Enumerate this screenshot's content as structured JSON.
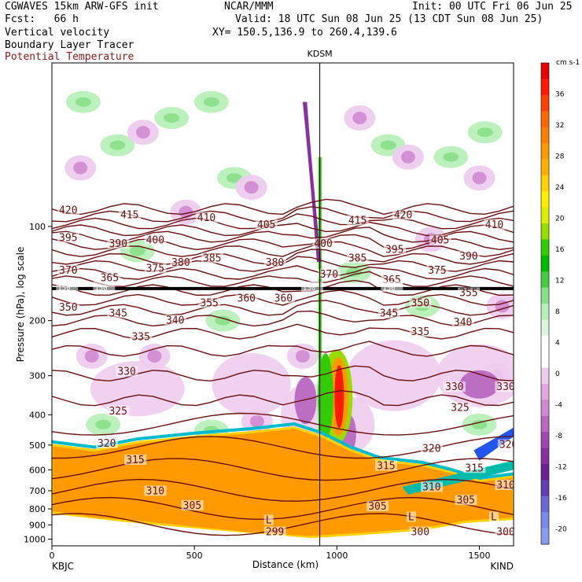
{
  "header": {
    "model": "CGWAVES 15km ARW-GFS init",
    "center": "NCAR/MMM",
    "init": "Init: 00 UTC Fri 06 Jun 25",
    "fcst": "Fcst:   66 h",
    "valid": "Valid: 18 UTC Sun 08 Jun 25 (13 CDT Sun 08 Jun 25)",
    "xy": "XY= 150.5,136.9 to 260.4,139.6",
    "fields": [
      "Vertical velocity",
      "Boundary Layer Tracer",
      "Potential Temperature"
    ]
  },
  "chart_data": {
    "type": "cross-section",
    "station_top": "KDSM",
    "xlabel": "Distance (km)",
    "ylabel": "Pressure (hPa), log scale",
    "x_ticks": [
      "0",
      "500",
      "1000",
      "1500"
    ],
    "x_tick_values": [
      0,
      500,
      1000,
      1500
    ],
    "xlim": [
      0,
      1620
    ],
    "y_ticks": [
      "100",
      "200",
      "300",
      "400",
      "500",
      "600",
      "700",
      "800",
      "900",
      "1000"
    ],
    "y_tick_values": [
      100,
      200,
      300,
      400,
      500,
      600,
      700,
      800,
      900,
      1000
    ],
    "ylim_hpa": [
      1050,
      30
    ],
    "endpoints": {
      "left": "KBJC",
      "right": "KIND"
    },
    "station_marker_x": 940,
    "colorbar": {
      "units": "cm s-1",
      "labels": [
        "36",
        "32",
        "28",
        "24",
        "20",
        "16",
        "12",
        "8",
        "4",
        "0",
        "-4",
        "-8",
        "-12",
        "-16",
        "-20"
      ],
      "colors": [
        "#e60000",
        "#ff1a00",
        "#ff4000",
        "#ff6600",
        "#ff8000",
        "#ff9900",
        "#ffb000",
        "#ffd000",
        "#ffee00",
        "#ddee00",
        "#99dd00",
        "#33cc00",
        "#00bb00",
        "#44cc44",
        "#88e088",
        "#b8efb8",
        "#dbf7db",
        "#ffffff",
        "#ffffff",
        "#eeccee",
        "#e0a8e0",
        "#d088d0",
        "#b868c0",
        "#a048b0",
        "#8830a0",
        "#6a2090",
        "#6040b0",
        "#6a6ad0",
        "#7a8ae8",
        "#8a9af0"
      ],
      "min": -22,
      "max": 40
    },
    "theta_labels": [
      {
        "text": "420",
        "x": 25,
        "p": 90
      },
      {
        "text": "415",
        "x": 240,
        "p": 93
      },
      {
        "text": "410",
        "x": 510,
        "p": 95
      },
      {
        "text": "405",
        "x": 720,
        "p": 100
      },
      {
        "text": "415",
        "x": 1040,
        "p": 97
      },
      {
        "text": "420",
        "x": 1200,
        "p": 93
      },
      {
        "text": "410",
        "x": 1520,
        "p": 100
      },
      {
        "text": "395",
        "x": 25,
        "p": 110
      },
      {
        "text": "390",
        "x": 200,
        "p": 115
      },
      {
        "text": "400",
        "x": 330,
        "p": 112
      },
      {
        "text": "400",
        "x": 920,
        "p": 115
      },
      {
        "text": "405",
        "x": 1330,
        "p": 112
      },
      {
        "text": "395",
        "x": 1170,
        "p": 120
      },
      {
        "text": "390",
        "x": 1430,
        "p": 126
      },
      {
        "text": "385",
        "x": 530,
        "p": 128
      },
      {
        "text": "380",
        "x": 420,
        "p": 132
      },
      {
        "text": "380",
        "x": 750,
        "p": 132
      },
      {
        "text": "385",
        "x": 1040,
        "p": 128
      },
      {
        "text": "375",
        "x": 330,
        "p": 138
      },
      {
        "text": "375",
        "x": 1320,
        "p": 140
      },
      {
        "text": "370",
        "x": 25,
        "p": 140
      },
      {
        "text": "365",
        "x": 170,
        "p": 148
      },
      {
        "text": "370",
        "x": 940,
        "p": 144
      },
      {
        "text": "365",
        "x": 1160,
        "p": 150
      },
      {
        "text": "355",
        "x": 1430,
        "p": 165
      },
      {
        "text": "360",
        "x": 650,
        "p": 172
      },
      {
        "text": "360",
        "x": 780,
        "p": 172
      },
      {
        "text": "355",
        "x": 520,
        "p": 178
      },
      {
        "text": "350",
        "x": 1260,
        "p": 178
      },
      {
        "text": "350",
        "x": 25,
        "p": 184
      },
      {
        "text": "345",
        "x": 200,
        "p": 192
      },
      {
        "text": "345",
        "x": 1150,
        "p": 192
      },
      {
        "text": "340",
        "x": 400,
        "p": 202
      },
      {
        "text": "340",
        "x": 1410,
        "p": 205
      },
      {
        "text": "335",
        "x": 280,
        "p": 228
      },
      {
        "text": "335",
        "x": 1260,
        "p": 220
      },
      {
        "text": "330",
        "x": 230,
        "p": 295
      },
      {
        "text": "330",
        "x": 1380,
        "p": 330
      },
      {
        "text": "330",
        "x": 1560,
        "p": 330
      },
      {
        "text": "325",
        "x": 200,
        "p": 395
      },
      {
        "text": "325",
        "x": 1400,
        "p": 385
      },
      {
        "text": "320",
        "x": 160,
        "p": 500
      },
      {
        "text": "320",
        "x": 1300,
        "p": 520
      },
      {
        "text": "320",
        "x": 1570,
        "p": 505
      },
      {
        "text": "315",
        "x": 260,
        "p": 565
      },
      {
        "text": "315",
        "x": 1140,
        "p": 590
      },
      {
        "text": "315",
        "x": 1450,
        "p": 600
      },
      {
        "text": "310",
        "x": 330,
        "p": 710
      },
      {
        "text": "310",
        "x": 1300,
        "p": 690
      },
      {
        "text": "310",
        "x": 1560,
        "p": 680
      },
      {
        "text": "305",
        "x": 460,
        "p": 790
      },
      {
        "text": "305",
        "x": 1110,
        "p": 795
      },
      {
        "text": "305",
        "x": 1420,
        "p": 760
      },
      {
        "text": "299",
        "x": 750,
        "p": 960
      },
      {
        "text": "300",
        "x": 1260,
        "p": 960
      },
      {
        "text": "300",
        "x": 1560,
        "p": 960
      }
    ],
    "pbl_labels": [
      {
        "text": "L",
        "x": 750,
        "p": 880
      },
      {
        "text": "L",
        "x": 1250,
        "p": 860
      },
      {
        "text": "L",
        "x": 1540,
        "p": 860
      }
    ],
    "tropopause_labels": [
      {
        "text": "150",
        "x": 20,
        "p": 158
      },
      {
        "text": "150",
        "x": 150,
        "p": 158
      },
      {
        "text": "150",
        "x": 880,
        "p": 158
      },
      {
        "text": "150",
        "x": 1160,
        "p": 158
      }
    ]
  }
}
